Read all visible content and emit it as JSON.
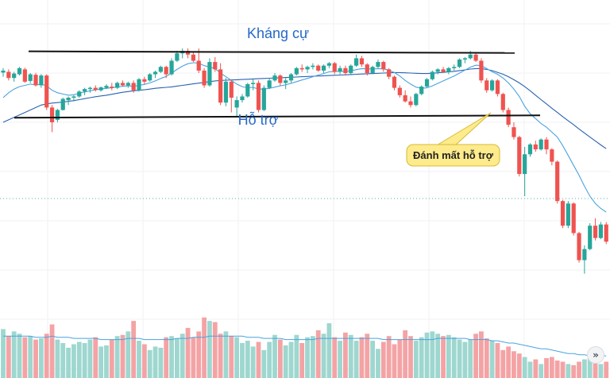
{
  "colors": {
    "up": "#26a69a",
    "down": "#ef5350",
    "vol_up": "#9ed7cf",
    "vol_down": "#f4a3a5",
    "ma_short": "#4aa3df",
    "ma_long": "#2a62b0",
    "annotation_text": "#2667c9",
    "callout_bg": "#fdeb8c",
    "callout_border": "#d9b933",
    "level_line": "#111111"
  },
  "annotations": {
    "resistance_label": "Kháng cự",
    "support_label": "Hỗ trợ",
    "breakdown_callout": "Đánh mất hỗ trợ"
  },
  "controls": {
    "scroll_button_icon": "»"
  },
  "chart_data": {
    "type": "candlestick",
    "title": "",
    "xlabel": "",
    "ylabel": "",
    "ylim": [
      0,
      100
    ],
    "grid": true,
    "resistance_level": 88.5,
    "support_level": 62.5,
    "candles": [
      [
        80.2,
        82.0,
        78.5,
        81.0
      ],
      [
        80.5,
        81.5,
        77.0,
        78.0
      ],
      [
        78.0,
        80.5,
        76.5,
        79.8
      ],
      [
        79.5,
        82.5,
        79.0,
        82.0
      ],
      [
        81.5,
        82.2,
        76.0,
        76.5
      ],
      [
        76.8,
        80.0,
        76.0,
        79.5
      ],
      [
        79.3,
        80.1,
        74.5,
        75.0
      ],
      [
        75.0,
        79.6,
        74.0,
        79.0
      ],
      [
        79.0,
        79.5,
        65.0,
        66.0
      ],
      [
        66.0,
        67.0,
        56.0,
        60.0
      ],
      [
        61.0,
        65.5,
        60.0,
        65.0
      ],
      [
        65.0,
        70.0,
        64.8,
        69.5
      ],
      [
        69.0,
        70.5,
        67.0,
        70.0
      ],
      [
        70.0,
        71.0,
        68.5,
        70.5
      ],
      [
        70.5,
        73.0,
        70.0,
        72.5
      ],
      [
        72.5,
        74.0,
        71.0,
        73.5
      ],
      [
        73.5,
        74.5,
        72.0,
        74.0
      ],
      [
        74.0,
        75.0,
        72.5,
        73.2
      ],
      [
        73.0,
        74.5,
        72.5,
        74.2
      ],
      [
        74.0,
        75.5,
        73.5,
        74.8
      ],
      [
        74.5,
        76.0,
        73.0,
        74.0
      ],
      [
        74.0,
        76.5,
        73.5,
        76.0
      ],
      [
        76.0,
        77.0,
        74.5,
        75.0
      ],
      [
        75.0,
        76.5,
        74.0,
        76.0
      ],
      [
        76.0,
        77.0,
        72.0,
        73.0
      ],
      [
        73.0,
        78.0,
        72.5,
        77.5
      ],
      [
        77.5,
        78.5,
        75.5,
        76.5
      ],
      [
        77.0,
        80.0,
        76.5,
        79.5
      ],
      [
        79.5,
        81.0,
        78.0,
        80.5
      ],
      [
        80.5,
        83.0,
        80.0,
        82.5
      ],
      [
        82.5,
        83.0,
        78.0,
        79.5
      ],
      [
        79.5,
        86.0,
        79.0,
        85.0
      ],
      [
        85.0,
        89.0,
        84.5,
        88.0
      ],
      [
        88.0,
        90.0,
        86.0,
        89.0
      ],
      [
        89.0,
        90.0,
        86.0,
        87.5
      ],
      [
        87.5,
        88.5,
        84.5,
        85.0
      ],
      [
        85.0,
        90.0,
        80.0,
        81.0
      ],
      [
        81.0,
        82.0,
        74.0,
        75.0
      ],
      [
        75.0,
        86.0,
        74.5,
        84.5
      ],
      [
        84.5,
        86.5,
        80.5,
        81.5
      ],
      [
        81.5,
        84.0,
        67.0,
        68.0
      ],
      [
        68.0,
        78.0,
        66.5,
        76.5
      ],
      [
        76.5,
        77.5,
        64.0,
        70.0
      ],
      [
        66.0,
        70.5,
        62.5,
        69.0
      ],
      [
        69.0,
        71.5,
        68.0,
        70.5
      ],
      [
        70.5,
        76.0,
        70.0,
        75.5
      ],
      [
        75.5,
        77.5,
        73.0,
        76.0
      ],
      [
        76.0,
        77.0,
        64.0,
        65.0
      ],
      [
        65.0,
        75.0,
        64.5,
        74.0
      ],
      [
        74.0,
        78.0,
        73.5,
        77.0
      ],
      [
        77.0,
        80.0,
        76.5,
        79.0
      ],
      [
        79.0,
        79.5,
        75.0,
        76.0
      ],
      [
        76.0,
        78.0,
        73.5,
        77.0
      ],
      [
        77.0,
        80.0,
        76.0,
        79.5
      ],
      [
        79.5,
        82.5,
        79.0,
        82.0
      ],
      [
        82.0,
        83.5,
        80.5,
        81.5
      ],
      [
        81.5,
        83.0,
        80.0,
        82.5
      ],
      [
        82.5,
        84.0,
        81.5,
        83.0
      ],
      [
        83.0,
        83.5,
        80.5,
        81.0
      ],
      [
        81.0,
        83.5,
        80.0,
        83.0
      ],
      [
        83.0,
        84.5,
        82.0,
        84.0
      ],
      [
        84.0,
        84.5,
        79.5,
        80.5
      ],
      [
        80.5,
        83.0,
        79.5,
        82.0
      ],
      [
        82.0,
        83.0,
        79.0,
        80.0
      ],
      [
        80.0,
        83.5,
        79.5,
        83.0
      ],
      [
        83.0,
        87.5,
        82.5,
        86.0
      ],
      [
        86.0,
        87.0,
        82.5,
        83.5
      ],
      [
        83.5,
        84.0,
        79.0,
        80.0
      ],
      [
        80.0,
        83.0,
        79.5,
        82.5
      ],
      [
        82.5,
        85.5,
        82.0,
        84.5
      ],
      [
        84.5,
        85.0,
        80.5,
        81.5
      ],
      [
        81.5,
        82.0,
        77.5,
        78.5
      ],
      [
        78.5,
        79.0,
        73.0,
        74.0
      ],
      [
        74.0,
        75.0,
        70.0,
        71.0
      ],
      [
        71.0,
        73.0,
        68.0,
        68.5
      ],
      [
        68.5,
        70.5,
        66.0,
        67.0
      ],
      [
        67.0,
        72.0,
        66.5,
        71.5
      ],
      [
        71.5,
        75.0,
        71.0,
        74.5
      ],
      [
        74.5,
        78.0,
        74.0,
        77.5
      ],
      [
        77.5,
        81.0,
        77.0,
        80.5
      ],
      [
        80.5,
        82.0,
        79.5,
        81.5
      ],
      [
        81.5,
        82.5,
        80.0,
        80.5
      ],
      [
        80.5,
        82.5,
        79.5,
        82.0
      ],
      [
        82.0,
        83.5,
        81.0,
        82.5
      ],
      [
        82.5,
        86.0,
        82.0,
        85.5
      ],
      [
        85.5,
        86.5,
        84.0,
        86.0
      ],
      [
        86.0,
        89.0,
        85.5,
        87.5
      ],
      [
        87.5,
        88.5,
        84.5,
        85.0
      ],
      [
        85.0,
        86.0,
        76.0,
        77.0
      ],
      [
        77.0,
        78.0,
        72.0,
        73.0
      ],
      [
        73.0,
        77.5,
        72.5,
        77.0
      ],
      [
        77.0,
        77.5,
        70.5,
        71.5
      ],
      [
        71.5,
        72.0,
        64.0,
        65.0
      ],
      [
        65.0,
        66.0,
        58.0,
        59.0
      ],
      [
        58.0,
        60.0,
        53.0,
        54.0
      ],
      [
        54.0,
        54.5,
        38.0,
        39.0
      ],
      [
        39.0,
        50.0,
        30.0,
        47.0
      ],
      [
        47.0,
        51.5,
        46.0,
        51.0
      ],
      [
        51.0,
        52.5,
        48.0,
        49.0
      ],
      [
        49.0,
        53.5,
        48.5,
        53.0
      ],
      [
        53.0,
        54.0,
        47.0,
        49.0
      ],
      [
        49.0,
        49.5,
        42.5,
        44.0
      ],
      [
        44.0,
        44.5,
        27.0,
        28.0
      ],
      [
        28.0,
        28.5,
        17.0,
        18.0
      ],
      [
        18.0,
        28.0,
        17.0,
        27.0
      ],
      [
        27.0,
        27.5,
        14.0,
        15.0
      ],
      [
        15.0,
        15.5,
        3.0,
        4.0
      ],
      [
        4.0,
        10.0,
        -1.5,
        8.5
      ],
      [
        8.5,
        19.0,
        8.0,
        18.0
      ],
      [
        18.0,
        21.0,
        12.0,
        13.0
      ],
      [
        13.0,
        19.5,
        12.5,
        18.5
      ],
      [
        18.5,
        19.5,
        10.5,
        11.5
      ]
    ],
    "volume": [
      42,
      36,
      40,
      38,
      35,
      36,
      33,
      34,
      38,
      46,
      33,
      30,
      26,
      29,
      31,
      30,
      33,
      35,
      27,
      28,
      33,
      36,
      37,
      40,
      49,
      32,
      29,
      24,
      27,
      26,
      35,
      36,
      34,
      38,
      43,
      35,
      40,
      52,
      49,
      48,
      38,
      40,
      36,
      35,
      30,
      32,
      27,
      31,
      24,
      31,
      37,
      33,
      28,
      31,
      37,
      30,
      35,
      36,
      41,
      38,
      47,
      35,
      32,
      39,
      37,
      32,
      35,
      38,
      32,
      25,
      31,
      36,
      29,
      33,
      41,
      36,
      32,
      35,
      39,
      40,
      38,
      36,
      37,
      35,
      33,
      31,
      33,
      38,
      40,
      34,
      32,
      30,
      24,
      27,
      23,
      21,
      18,
      14,
      16,
      12,
      17,
      18,
      15,
      14,
      12,
      11,
      14,
      16,
      19,
      13,
      12,
      14
    ],
    "ma_short": [
      70.0,
      72.0,
      73.5,
      74.5,
      75.0,
      75.5,
      75.2,
      75.5,
      74.8,
      73.0,
      72.0,
      71.5,
      71.0,
      71.2,
      71.8,
      72.3,
      72.8,
      73.2,
      73.5,
      73.8,
      74.0,
      74.4,
      74.6,
      74.8,
      74.6,
      75.0,
      75.4,
      76.0,
      76.8,
      77.8,
      78.6,
      80.0,
      81.5,
      82.8,
      83.8,
      84.2,
      84.0,
      83.0,
      82.5,
      81.8,
      80.0,
      78.5,
      77.0,
      75.5,
      74.5,
      74.0,
      74.2,
      73.5,
      73.5,
      73.8,
      74.3,
      74.8,
      75.2,
      75.8,
      76.5,
      77.2,
      77.8,
      78.5,
      79.2,
      79.8,
      80.5,
      80.6,
      80.7,
      80.7,
      80.9,
      81.4,
      81.8,
      81.7,
      81.6,
      81.8,
      81.7,
      81.2,
      80.2,
      78.8,
      77.0,
      75.5,
      74.3,
      73.8,
      74.0,
      74.8,
      75.8,
      76.8,
      77.8,
      78.8,
      80.0,
      81.2,
      82.4,
      83.2,
      83.0,
      81.8,
      80.5,
      79.5,
      78.0,
      76.0,
      73.5,
      70.5,
      66.5,
      63.5,
      61.5,
      59.5,
      58.0,
      56.0,
      54.0,
      50.5,
      46.5,
      42.5,
      38.5,
      34.0,
      30.0,
      27.0,
      25.0,
      23.5
    ],
    "ma_long": [
      60.0,
      61.0,
      62.0,
      63.0,
      64.0,
      65.0,
      66.0,
      67.0,
      67.5,
      67.8,
      68.0,
      68.2,
      68.5,
      68.8,
      69.2,
      69.6,
      70.0,
      70.4,
      70.7,
      71.0,
      71.4,
      71.8,
      72.2,
      72.5,
      72.8,
      73.0,
      73.2,
      73.5,
      73.8,
      74.0,
      74.2,
      74.4,
      74.7,
      75.0,
      75.3,
      75.6,
      75.9,
      76.2,
      76.5,
      76.8,
      77.0,
      77.1,
      77.2,
      77.3,
      77.4,
      77.5,
      77.6,
      77.7,
      77.8,
      77.9,
      78.0,
      78.1,
      78.2,
      78.3,
      78.4,
      78.5,
      78.6,
      78.7,
      78.8,
      78.9,
      79.0,
      79.1,
      79.2,
      79.3,
      79.4,
      79.5,
      79.6,
      79.7,
      79.8,
      79.9,
      80.0,
      80.1,
      80.2,
      80.2,
      80.1,
      80.0,
      79.9,
      79.8,
      79.8,
      79.9,
      80.1,
      80.3,
      80.5,
      80.7,
      81.0,
      81.3,
      81.6,
      81.8,
      81.8,
      81.5,
      81.0,
      80.3,
      79.5,
      78.5,
      77.3,
      76.0,
      74.5,
      72.8,
      71.0,
      69.2,
      67.5,
      65.7,
      64.0,
      62.3,
      60.6,
      59.0,
      57.3,
      55.6,
      54.0,
      52.4,
      50.8,
      49.3
    ],
    "volume_ma": [
      36,
      36,
      36,
      36,
      36,
      36,
      35,
      35,
      35,
      36,
      35,
      35,
      35,
      34,
      34,
      34,
      34,
      34,
      33,
      33,
      33,
      33,
      33,
      34,
      34,
      34,
      33,
      33,
      33,
      33,
      33,
      33,
      34,
      34,
      34,
      35,
      35,
      35,
      36,
      36,
      36,
      36,
      36,
      36,
      36,
      35,
      35,
      35,
      34,
      34,
      34,
      34,
      33,
      33,
      33,
      33,
      33,
      33,
      34,
      34,
      34,
      34,
      34,
      34,
      34,
      34,
      34,
      34,
      34,
      34,
      33,
      33,
      33,
      33,
      33,
      33,
      33,
      33,
      33,
      33,
      34,
      34,
      34,
      34,
      34,
      34,
      33,
      33,
      33,
      33,
      32,
      32,
      31,
      30,
      30,
      29,
      28,
      27,
      26,
      25,
      25,
      24,
      23,
      22,
      21,
      21,
      20,
      20,
      19,
      19,
      19,
      19
    ]
  }
}
